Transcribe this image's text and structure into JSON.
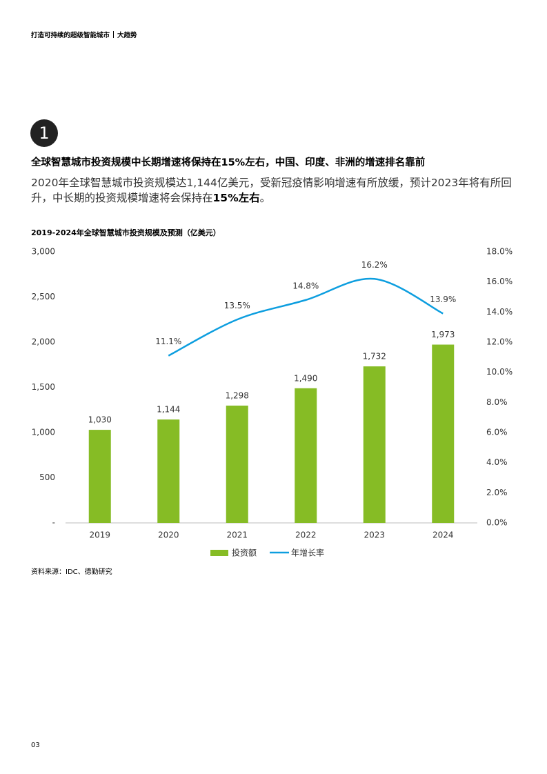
{
  "header": {
    "title": "打造可持续的超级智能城市",
    "section": "大趋势"
  },
  "section_number": "1",
  "heading": "全球智慧城市投资规模中长期增速将保持在15%左右，中国、印度、非洲的增速排名靠前",
  "paragraph": {
    "text": "2020年全球智慧城市投资规模达1,144亿美元，受新冠疫情影响增速有所放缓，预计2023年将有所回升，中长期的投资规模增速将会保持在",
    "bold": "15%左右",
    "end": "。"
  },
  "chart_data": {
    "type": "bar_line",
    "title": "2019-2024年全球智慧城市投资规模及预测（亿美元）",
    "categories": [
      "2019",
      "2020",
      "2021",
      "2022",
      "2023",
      "2024"
    ],
    "series": [
      {
        "name": "投资额",
        "type": "bar",
        "color": "#86bc25",
        "values": [
          1030,
          1144,
          1298,
          1490,
          1732,
          1973
        ],
        "value_labels": [
          "1,030",
          "1,144",
          "1,298",
          "1,490",
          "1,732",
          "1,973"
        ]
      },
      {
        "name": "年增长率",
        "type": "line",
        "axis": "y2",
        "color": "#0d9edf",
        "values": [
          null,
          11.1,
          13.5,
          14.8,
          16.2,
          13.9
        ],
        "value_labels": [
          null,
          "11.1%",
          "13.5%",
          "14.8%",
          "16.2%",
          "13.9%"
        ]
      }
    ],
    "ylim": [
      0,
      3000
    ],
    "yticks": [
      {
        "value": 0,
        "label": "-"
      },
      500,
      {
        "value": 1000,
        "label": "1,000"
      },
      {
        "value": 1500,
        "label": "1,500"
      },
      {
        "value": 2000,
        "label": "2,000"
      },
      {
        "value": 2500,
        "label": "2,500"
      },
      {
        "value": 3000,
        "label": "3,000"
      }
    ],
    "y2lim": [
      0,
      18
    ],
    "y2ticks": [
      {
        "value": 0,
        "label": "0.0%"
      },
      {
        "value": 2,
        "label": "2.0%"
      },
      {
        "value": 4,
        "label": "4.0%"
      },
      {
        "value": 6,
        "label": "6.0%"
      },
      {
        "value": 8,
        "label": "8.0%"
      },
      {
        "value": 10,
        "label": "10.0%"
      },
      {
        "value": 12,
        "label": "12.0%"
      },
      {
        "value": 14,
        "label": "14.0%"
      },
      {
        "value": 16,
        "label": "16.0%"
      },
      {
        "value": 18,
        "label": "18.0%"
      }
    ],
    "grid": false
  },
  "source": "资料来源：IDC、德勤研究",
  "page_number": "03"
}
